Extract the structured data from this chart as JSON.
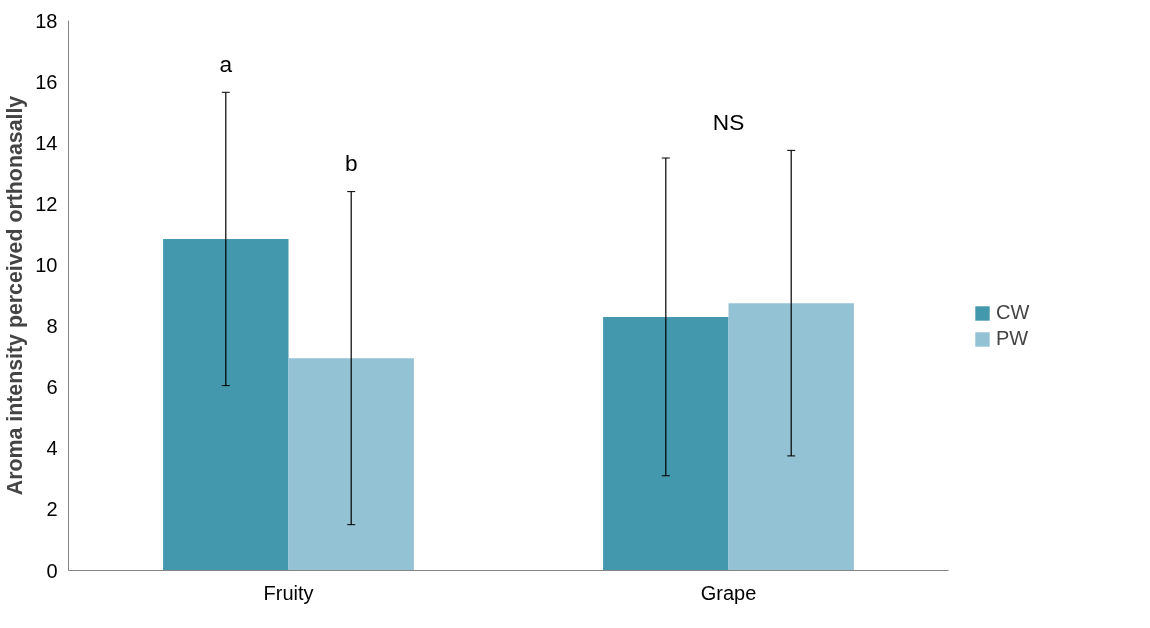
{
  "chart_data": {
    "type": "bar",
    "ylabel": "Aroma intensity perceived orthonasally",
    "categories": [
      "Fruity",
      "Grape"
    ],
    "series": [
      {
        "name": "CW",
        "color": "#4398ae",
        "values": [
          10.85,
          8.3
        ],
        "errors": [
          4.8,
          5.2
        ]
      },
      {
        "name": "PW",
        "color": "#93c2d4",
        "values": [
          6.95,
          8.75
        ],
        "errors": [
          5.45,
          5.0
        ]
      }
    ],
    "annotations": [
      "a",
      "b",
      "NS"
    ],
    "ylim": [
      0,
      18
    ],
    "yticks": [
      0,
      2,
      4,
      6,
      8,
      10,
      12,
      14,
      16,
      18
    ],
    "grid": false,
    "legend": "right"
  }
}
